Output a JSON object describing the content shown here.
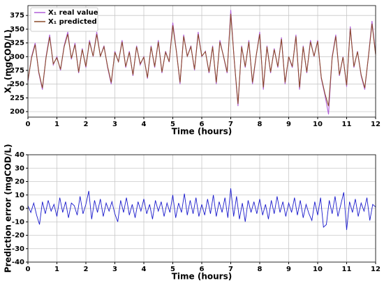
{
  "chart_data": [
    {
      "type": "line",
      "xlabel": "Time (hours)",
      "ylabel": "X₁ (mgCOD/L)",
      "x": [
        0,
        0.125,
        0.25,
        0.375,
        0.5,
        0.625,
        0.75,
        0.875,
        1,
        1.125,
        1.25,
        1.375,
        1.5,
        1.625,
        1.75,
        1.875,
        2,
        2.125,
        2.25,
        2.375,
        2.5,
        2.625,
        2.75,
        2.875,
        3,
        3.125,
        3.25,
        3.375,
        3.5,
        3.625,
        3.75,
        3.875,
        4,
        4.125,
        4.25,
        4.375,
        4.5,
        4.625,
        4.75,
        4.875,
        5,
        5.125,
        5.25,
        5.375,
        5.5,
        5.625,
        5.75,
        5.875,
        6,
        6.125,
        6.25,
        6.375,
        6.5,
        6.625,
        6.75,
        6.875,
        7,
        7.125,
        7.25,
        7.375,
        7.5,
        7.625,
        7.75,
        7.875,
        8,
        8.125,
        8.25,
        8.375,
        8.5,
        8.625,
        8.75,
        8.875,
        9,
        9.125,
        9.25,
        9.375,
        9.5,
        9.625,
        9.75,
        9.875,
        10,
        10.125,
        10.25,
        10.375,
        10.5,
        10.625,
        10.75,
        10.875,
        11,
        11.125,
        11.25,
        11.375,
        11.5,
        11.625,
        11.75,
        11.875,
        12
      ],
      "series": [
        {
          "name": "X₁ real value",
          "color": "#b05fd8",
          "values": [
            255,
            300,
            325,
            270,
            240,
            300,
            340,
            285,
            300,
            275,
            320,
            345,
            295,
            325,
            270,
            315,
            280,
            330,
            300,
            345,
            300,
            320,
            280,
            250,
            310,
            290,
            330,
            280,
            310,
            265,
            320,
            285,
            300,
            260,
            320,
            280,
            330,
            270,
            310,
            290,
            362,
            310,
            250,
            340,
            300,
            320,
            275,
            345,
            300,
            310,
            270,
            320,
            250,
            330,
            300,
            270,
            385,
            290,
            210,
            320,
            280,
            330,
            250,
            300,
            345,
            240,
            320,
            270,
            315,
            280,
            335,
            250,
            300,
            280,
            340,
            240,
            320,
            270,
            330,
            300,
            330,
            260,
            230,
            195,
            300,
            340,
            265,
            300,
            245,
            355,
            280,
            310,
            265,
            240,
            300,
            365,
            305
          ]
        },
        {
          "name": "X₁ predicted",
          "color": "#8b4a2b",
          "values": [
            257,
            298,
            322,
            272,
            243,
            298,
            336,
            287,
            298,
            277,
            318,
            341,
            297,
            322,
            272,
            313,
            282,
            327,
            301,
            341,
            301,
            318,
            282,
            253,
            308,
            291,
            327,
            282,
            308,
            267,
            318,
            287,
            299,
            262,
            318,
            282,
            327,
            272,
            308,
            291,
            357,
            309,
            253,
            337,
            301,
            318,
            277,
            341,
            301,
            309,
            272,
            318,
            253,
            327,
            301,
            272,
            378,
            291,
            214,
            318,
            282,
            327,
            253,
            301,
            341,
            244,
            318,
            272,
            313,
            282,
            332,
            253,
            300,
            282,
            337,
            244,
            318,
            272,
            327,
            301,
            328,
            262,
            233,
            210,
            298,
            337,
            267,
            299,
            248,
            351,
            282,
            309,
            267,
            243,
            299,
            360,
            304
          ]
        }
      ],
      "xlim": [
        0,
        12
      ],
      "xticks": [
        0,
        1,
        2,
        3,
        4,
        5,
        6,
        7,
        8,
        9,
        10,
        11,
        12
      ],
      "ylim": [
        190,
        393
      ],
      "yticks": [
        200,
        225,
        250,
        275,
        300,
        325,
        350,
        375
      ],
      "grid": true,
      "legend": "upper left"
    },
    {
      "type": "line",
      "xlabel": "Time (hours)",
      "ylabel": "Prediction error (mgCOD/L)",
      "x": [
        0,
        0.1,
        0.2,
        0.3,
        0.4,
        0.5,
        0.6,
        0.7,
        0.8,
        0.9,
        1,
        1.1,
        1.2,
        1.3,
        1.4,
        1.5,
        1.6,
        1.7,
        1.8,
        1.9,
        2,
        2.1,
        2.2,
        2.3,
        2.4,
        2.5,
        2.6,
        2.7,
        2.8,
        2.9,
        3,
        3.1,
        3.2,
        3.3,
        3.4,
        3.5,
        3.6,
        3.7,
        3.8,
        3.9,
        4,
        4.1,
        4.2,
        4.3,
        4.4,
        4.5,
        4.6,
        4.7,
        4.8,
        4.9,
        5,
        5.1,
        5.2,
        5.3,
        5.4,
        5.5,
        5.6,
        5.7,
        5.8,
        5.9,
        6,
        6.1,
        6.2,
        6.3,
        6.4,
        6.5,
        6.6,
        6.7,
        6.8,
        6.9,
        7,
        7.1,
        7.2,
        7.3,
        7.4,
        7.5,
        7.6,
        7.7,
        7.8,
        7.9,
        8,
        8.1,
        8.2,
        8.3,
        8.4,
        8.5,
        8.6,
        8.7,
        8.8,
        8.9,
        9,
        9.1,
        9.2,
        9.3,
        9.4,
        9.5,
        9.6,
        9.7,
        9.8,
        9.9,
        10,
        10.1,
        10.2,
        10.3,
        10.4,
        10.5,
        10.6,
        10.7,
        10.8,
        10.9,
        11,
        11.1,
        11.2,
        11.3,
        11.4,
        11.5,
        11.6,
        11.7,
        11.8,
        11.9,
        12
      ],
      "series": [
        {
          "color": "#1a1acc",
          "values": [
            2,
            -3,
            4,
            -5,
            -12,
            5,
            -4,
            6,
            -2,
            3,
            -6,
            8,
            -3,
            5,
            -7,
            4,
            2,
            -5,
            9,
            -4,
            3,
            13,
            -8,
            6,
            -3,
            7,
            -6,
            4,
            -2,
            5,
            -4,
            -10,
            6,
            -3,
            8,
            -5,
            3,
            -7,
            5,
            -2,
            7,
            -4,
            3,
            -8,
            6,
            -2,
            5,
            -6,
            4,
            -3,
            10,
            -7,
            4,
            -3,
            11,
            -5,
            6,
            -4,
            8,
            -6,
            3,
            -5,
            7,
            -4,
            10,
            -6,
            5,
            -3,
            8,
            -7,
            15,
            -6,
            9,
            -8,
            4,
            -10,
            6,
            -3,
            5,
            -4,
            7,
            -5,
            3,
            -8,
            6,
            -4,
            9,
            -3,
            5,
            -6,
            4,
            -3,
            8,
            -5,
            6,
            -7,
            3,
            -4,
            -9,
            5,
            -5,
            8,
            -14,
            -12,
            6,
            -4,
            9,
            -6,
            3,
            12,
            -16,
            5,
            -3,
            7,
            -6,
            4,
            -2,
            8,
            -9,
            3,
            1
          ]
        }
      ],
      "xlim": [
        0,
        12
      ],
      "xticks": [
        0,
        1,
        2,
        3,
        4,
        5,
        6,
        7,
        8,
        9,
        10,
        11,
        12
      ],
      "ylim": [
        -40,
        40
      ],
      "yticks": [
        -40,
        -30,
        -20,
        -10,
        0,
        10,
        20,
        30,
        40
      ],
      "grid": true
    }
  ]
}
